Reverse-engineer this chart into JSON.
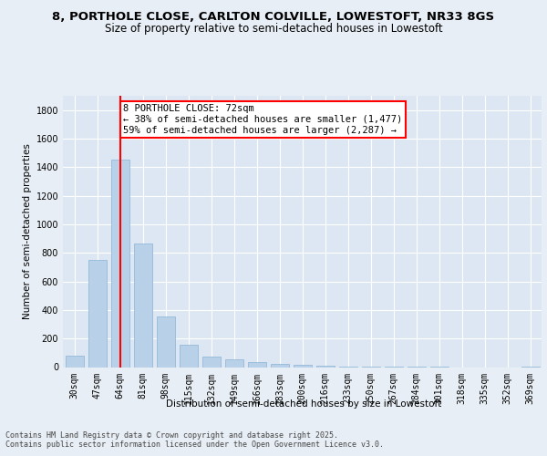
{
  "title1": "8, PORTHOLE CLOSE, CARLTON COLVILLE, LOWESTOFT, NR33 8GS",
  "title2": "Size of property relative to semi-detached houses in Lowestoft",
  "xlabel": "Distribution of semi-detached houses by size in Lowestoft",
  "ylabel": "Number of semi-detached properties",
  "categories": [
    "30sqm",
    "47sqm",
    "64sqm",
    "81sqm",
    "98sqm",
    "115sqm",
    "132sqm",
    "149sqm",
    "166sqm",
    "183sqm",
    "200sqm",
    "216sqm",
    "233sqm",
    "250sqm",
    "267sqm",
    "284sqm",
    "301sqm",
    "318sqm",
    "335sqm",
    "352sqm",
    "369sqm"
  ],
  "values": [
    80,
    750,
    1450,
    865,
    355,
    155,
    75,
    55,
    35,
    25,
    15,
    10,
    5,
    3,
    2,
    1,
    1,
    0,
    0,
    0,
    5
  ],
  "bar_color": "#b8d0e8",
  "bar_edge_color": "#8ab4d4",
  "vline_x": 2,
  "vline_color": "red",
  "annotation_text": "8 PORTHOLE CLOSE: 72sqm\n← 38% of semi-detached houses are smaller (1,477)\n59% of semi-detached houses are larger (2,287) →",
  "annotation_box_color": "white",
  "annotation_box_edge": "red",
  "footer1": "Contains HM Land Registry data © Crown copyright and database right 2025.",
  "footer2": "Contains public sector information licensed under the Open Government Licence v3.0.",
  "ylim": [
    0,
    1900
  ],
  "yticks": [
    0,
    200,
    400,
    600,
    800,
    1000,
    1200,
    1400,
    1600,
    1800
  ],
  "bg_color": "#e8eef5",
  "plot_bg_color": "#dce7f3",
  "title1_fontsize": 9.5,
  "title2_fontsize": 8.5,
  "axis_label_fontsize": 7.5,
  "tick_fontsize": 7,
  "footer_fontsize": 6,
  "annotation_fontsize": 7.5
}
